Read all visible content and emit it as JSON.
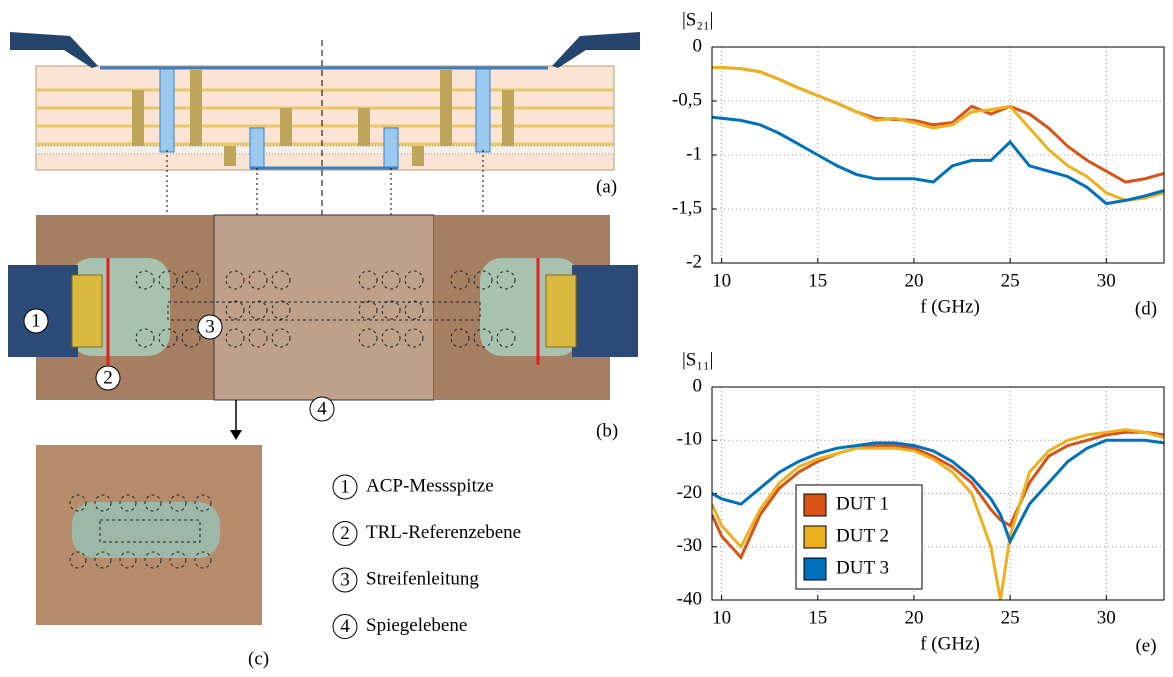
{
  "figure": {
    "panel_labels": [
      "(a)",
      "(b)",
      "(c)"
    ],
    "legend": [
      {
        "number": "1",
        "text": "ACP-Messspitze"
      },
      {
        "number": "2",
        "text": "TRL-Referenzebene"
      },
      {
        "number": "3",
        "text": "Streifenleitung"
      },
      {
        "number": "4",
        "text": "Spiegelebene"
      }
    ]
  },
  "chart_data": [
    {
      "type": "line",
      "title": "|S₂₁|",
      "x_label": "f (GHz)",
      "panel": "(d)",
      "x": [
        9.5,
        10,
        11,
        12,
        13,
        14,
        15,
        16,
        17,
        18,
        19,
        20,
        21,
        22,
        23,
        24,
        25,
        26,
        27,
        28,
        29,
        30,
        31,
        32,
        33
      ],
      "series": [
        {
          "color": "#d95319",
          "values": [
            -0.19,
            -0.19,
            -0.2,
            -0.23,
            -0.3,
            -0.38,
            -0.45,
            -0.52,
            -0.6,
            -0.66,
            -0.67,
            -0.68,
            -0.72,
            -0.7,
            -0.55,
            -0.62,
            -0.55,
            -0.62,
            -0.75,
            -0.92,
            -1.05,
            -1.15,
            -1.25,
            -1.22,
            -1.17
          ]
        },
        {
          "color": "#edb120",
          "values": [
            -0.19,
            -0.19,
            -0.2,
            -0.23,
            -0.3,
            -0.38,
            -0.45,
            -0.52,
            -0.6,
            -0.68,
            -0.66,
            -0.7,
            -0.75,
            -0.72,
            -0.6,
            -0.58,
            -0.55,
            -0.75,
            -0.95,
            -1.1,
            -1.2,
            -1.35,
            -1.42,
            -1.4,
            -1.35
          ]
        },
        {
          "color": "#0072bd",
          "values": [
            -0.65,
            -0.66,
            -0.68,
            -0.72,
            -0.8,
            -0.9,
            -1.0,
            -1.1,
            -1.18,
            -1.22,
            -1.22,
            -1.22,
            -1.25,
            -1.1,
            -1.05,
            -1.05,
            -0.88,
            -1.1,
            -1.15,
            -1.2,
            -1.3,
            -1.45,
            -1.42,
            -1.38,
            -1.33
          ]
        }
      ],
      "xlim": [
        9.5,
        33
      ],
      "xticks": [
        10,
        15,
        20,
        25,
        30
      ],
      "ylim": [
        -2,
        0
      ],
      "yticks": [
        0,
        {
          "value": -0.5,
          "label": "-0,5"
        },
        -1,
        {
          "value": -1.5,
          "label": "-1,5"
        },
        -2
      ],
      "grid": true
    },
    {
      "type": "line",
      "title": "|S₁₁|",
      "x_label": "f (GHz)",
      "panel": "(e)",
      "x": [
        9.5,
        10,
        11,
        12,
        13,
        14,
        15,
        16,
        17,
        18,
        19,
        20,
        21,
        22,
        23,
        24,
        24.5,
        25,
        26,
        27,
        28,
        29,
        30,
        31,
        32,
        33
      ],
      "series": [
        {
          "name": "DUT 1",
          "color": "#d95319",
          "values": [
            -24,
            -28,
            -32,
            -24,
            -19,
            -16,
            -14,
            -12.5,
            -11.5,
            -11,
            -11,
            -11.5,
            -13,
            -15,
            -18,
            -23,
            -25,
            -26,
            -18,
            -13,
            -11,
            -10,
            -9,
            -8.5,
            -8.5,
            -9
          ]
        },
        {
          "name": "DUT 2",
          "color": "#edb120",
          "values": [
            -22,
            -26,
            -30,
            -23,
            -18,
            -15,
            -13.5,
            -12.5,
            -11.5,
            -11.5,
            -11.5,
            -12,
            -13.5,
            -16,
            -20,
            -30,
            -40,
            -28,
            -16,
            -12,
            -10,
            -9,
            -8.5,
            -8,
            -8.5,
            -9.5
          ]
        },
        {
          "name": "DUT 3",
          "color": "#0072bd",
          "values": [
            -20,
            -21,
            -22,
            -19,
            -16,
            -14,
            -12.5,
            -11.5,
            -11,
            -10.5,
            -10.5,
            -11,
            -12,
            -14,
            -17,
            -21,
            -24,
            -29,
            -22,
            -18,
            -14,
            -11.5,
            -10,
            -10,
            -10,
            -10.5
          ]
        }
      ],
      "xlim": [
        9.5,
        33
      ],
      "xticks": [
        10,
        15,
        20,
        25,
        30
      ],
      "ylim": [
        -40,
        0
      ],
      "yticks": [
        0,
        -10,
        -20,
        -30,
        -40
      ],
      "grid": true,
      "legend": "lower left"
    }
  ]
}
